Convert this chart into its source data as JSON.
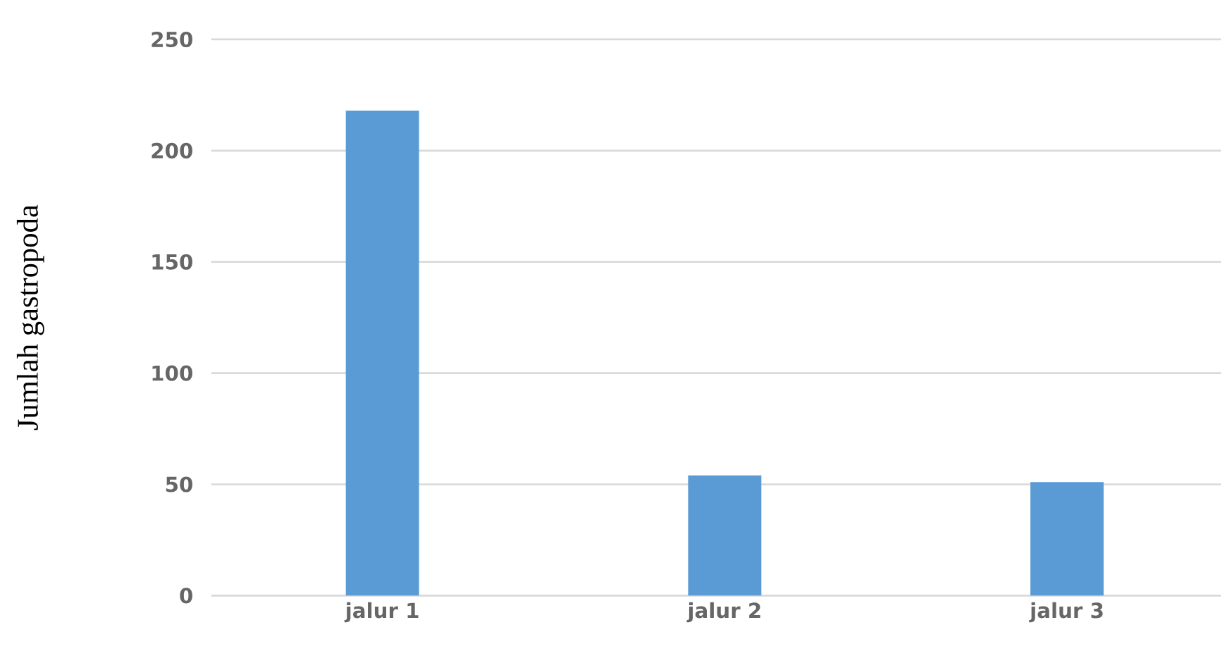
{
  "chart_data": {
    "type": "bar",
    "ylabel": "Jumlah gastropoda",
    "categories": [
      "jalur 1",
      "jalur 2",
      "jalur 3"
    ],
    "values": [
      218,
      54,
      51
    ],
    "color": "#5b9bd5",
    "ylim": [
      0,
      250
    ],
    "yticks": [
      0,
      50,
      100,
      150,
      200,
      250
    ],
    "grid": "y"
  }
}
